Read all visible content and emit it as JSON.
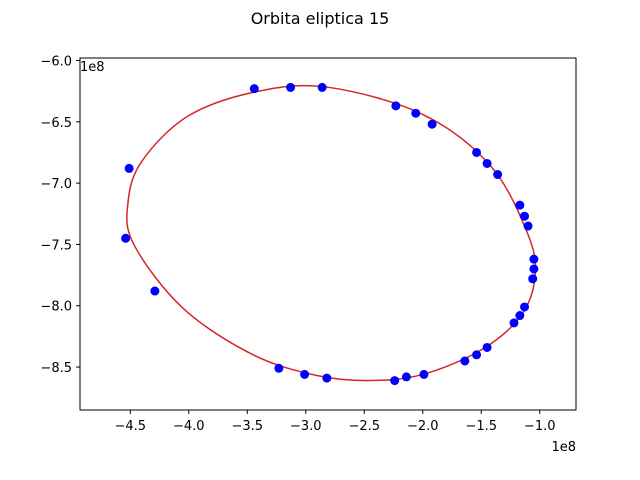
{
  "chart_data": {
    "type": "scatter",
    "title": "Orbita eliptica 15",
    "xlabel": "",
    "ylabel": "",
    "x_offset_label": "1e8",
    "y_offset_label": "1e8",
    "xlim": [
      -4.93,
      -0.69
    ],
    "ylim": [
      -8.85,
      -5.98
    ],
    "xticks": [
      -4.5,
      -4.0,
      -3.5,
      -3.0,
      -2.5,
      -2.0,
      -1.5,
      -1.0
    ],
    "xtick_labels": [
      "−4.5",
      "−4.0",
      "−3.5",
      "−3.0",
      "−2.5",
      "−2.0",
      "−1.5",
      "−1.0"
    ],
    "yticks": [
      -8.5,
      -8.0,
      -7.5,
      -7.0,
      -6.5,
      -6.0
    ],
    "ytick_labels": [
      "−8.5",
      "−8.0",
      "−7.5",
      "−7.0",
      "−6.5",
      "−6.0"
    ],
    "grid": false,
    "series": [
      {
        "kind": "line",
        "color": "#d62728",
        "points": [
          [
            -2.8,
            -6.22
          ],
          [
            -2.0,
            -6.44
          ],
          [
            -1.42,
            -6.86
          ],
          [
            -1.1,
            -7.42
          ],
          [
            -1.04,
            -7.76
          ],
          [
            -1.16,
            -8.08
          ],
          [
            -1.5,
            -8.36
          ],
          [
            -2.0,
            -8.56
          ],
          [
            -2.45,
            -8.61
          ],
          [
            -2.9,
            -8.57
          ],
          [
            -3.45,
            -8.4
          ],
          [
            -4.05,
            -8.02
          ],
          [
            -4.47,
            -7.5
          ],
          [
            -4.52,
            -7.16
          ],
          [
            -4.4,
            -6.82
          ],
          [
            -4.0,
            -6.45
          ],
          [
            -3.4,
            -6.25
          ],
          [
            -2.8,
            -6.22
          ]
        ]
      },
      {
        "kind": "points",
        "color": "#0000ff",
        "edgecolor": "#0000ff",
        "points": [
          [
            -3.44,
            -6.23
          ],
          [
            -3.13,
            -6.22
          ],
          [
            -2.86,
            -6.22
          ],
          [
            -2.23,
            -6.37
          ],
          [
            -2.06,
            -6.43
          ],
          [
            -1.92,
            -6.52
          ],
          [
            -1.54,
            -6.75
          ],
          [
            -1.45,
            -6.84
          ],
          [
            -1.36,
            -6.93
          ],
          [
            -1.17,
            -7.18
          ],
          [
            -1.13,
            -7.27
          ],
          [
            -1.1,
            -7.35
          ],
          [
            -1.05,
            -7.62
          ],
          [
            -1.05,
            -7.7
          ],
          [
            -1.06,
            -7.78
          ],
          [
            -1.13,
            -8.01
          ],
          [
            -1.17,
            -8.08
          ],
          [
            -1.22,
            -8.14
          ],
          [
            -1.45,
            -8.34
          ],
          [
            -1.54,
            -8.4
          ],
          [
            -1.64,
            -8.45
          ],
          [
            -1.99,
            -8.56
          ],
          [
            -2.14,
            -8.58
          ],
          [
            -2.24,
            -8.61
          ],
          [
            -2.82,
            -8.59
          ],
          [
            -3.01,
            -8.56
          ],
          [
            -3.23,
            -8.51
          ],
          [
            -4.29,
            -7.88
          ],
          [
            -4.54,
            -7.45
          ],
          [
            -4.51,
            -6.88
          ]
        ]
      }
    ]
  }
}
